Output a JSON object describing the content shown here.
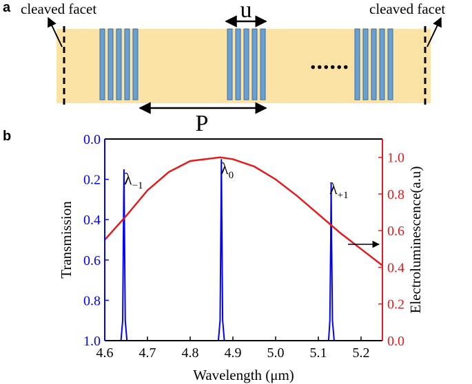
{
  "diagram": {
    "panel_label": "a",
    "left_facet": "cleaved facet",
    "right_facet": "cleaved facet",
    "u_label": "u",
    "p_label": "P",
    "ellipsis": "......"
  },
  "chart_data": {
    "type": "line",
    "panel_label": "b",
    "xlabel": "Wavelength (μm)",
    "ylabel": "Transmission",
    "y2label": "Electroluminescence(a.u)",
    "xlim": [
      4.6,
      5.25
    ],
    "xticks": [
      4.6,
      4.7,
      4.8,
      4.9,
      {
        "value": 5,
        "label": "5.0"
      },
      5.1,
      5.2
    ],
    "ylim": [
      1,
      0
    ],
    "yticks": [
      {
        "value": 0,
        "label": "0.0"
      },
      0.2,
      0.4,
      0.6,
      0.8,
      {
        "value": 1,
        "label": "1.0"
      }
    ],
    "y2lim": [
      0,
      1.1
    ],
    "y2ticks": [
      {
        "value": 0,
        "label": "0.0"
      },
      0.2,
      0.4,
      0.6,
      0.8,
      {
        "value": 1,
        "label": "1.0"
      }
    ],
    "series": [
      {
        "color": "#0000ff",
        "x": [
          4.6,
          4.638,
          4.642,
          4.644,
          4.645,
          4.646,
          4.648,
          4.652,
          4.866,
          4.87,
          4.872,
          4.873,
          4.874,
          4.876,
          4.88,
          5.124,
          5.127,
          5.129,
          5.13,
          5.131,
          5.133,
          5.137,
          5.25
        ],
        "values": [
          1,
          1,
          0.9,
          0.4,
          0.15,
          0.4,
          0.9,
          1,
          1,
          0.9,
          0.4,
          0.1,
          0.4,
          0.9,
          1,
          1,
          0.9,
          0.5,
          0.22,
          0.5,
          0.9,
          1,
          1
        ]
      },
      {
        "color": "#e41a1c",
        "axis": "y2",
        "x": [
          4.6,
          4.65,
          4.7,
          4.75,
          4.8,
          4.87,
          4.9,
          4.95,
          5.0,
          5.05,
          5.1,
          5.15,
          5.2,
          5.25
        ],
        "values": [
          0.55,
          0.68,
          0.82,
          0.92,
          0.98,
          1.0,
          0.99,
          0.95,
          0.88,
          0.79,
          0.69,
          0.59,
          0.5,
          0.41
        ]
      }
    ],
    "annotations": [
      {
        "text": "λ",
        "sub": "−1"
      },
      {
        "text": "λ",
        "sub": "0"
      },
      {
        "text": "λ",
        "sub": "+1"
      }
    ]
  }
}
